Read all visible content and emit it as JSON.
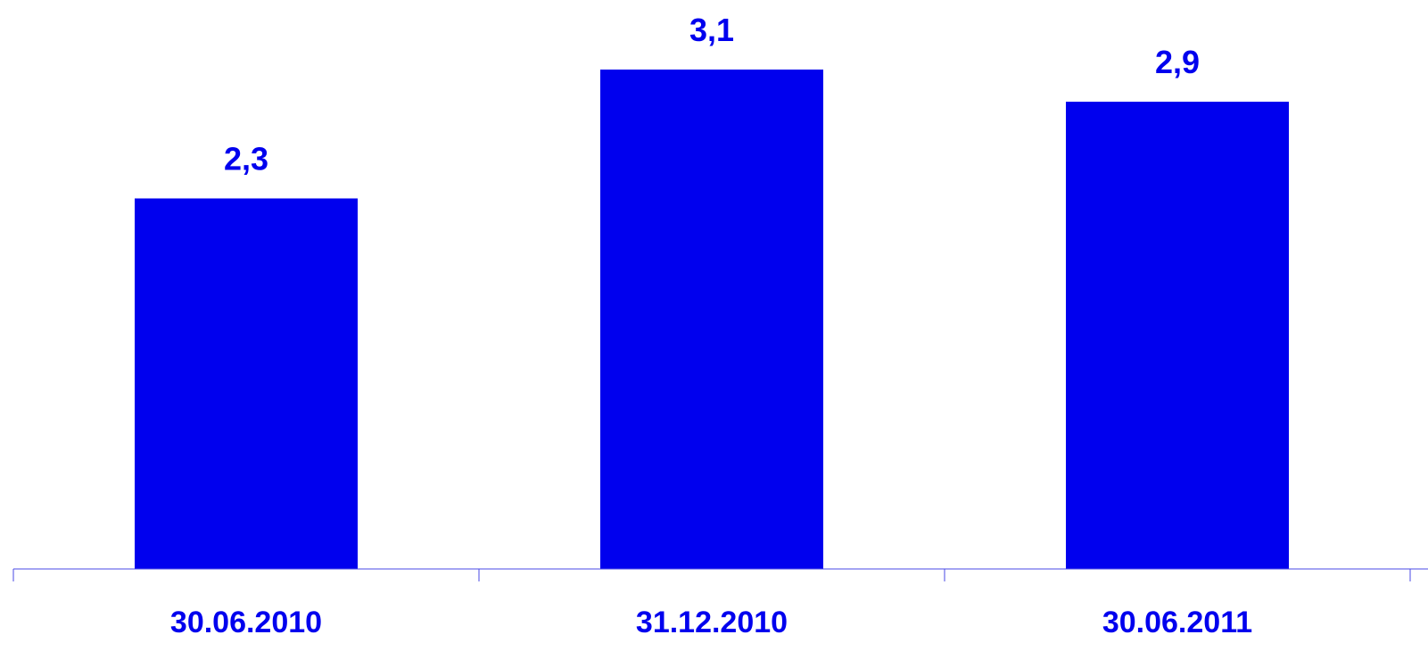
{
  "chart_data": {
    "type": "bar",
    "categories": [
      "30.06.2010",
      "31.12.2010",
      "30.06.2011"
    ],
    "values": [
      2.3,
      3.1,
      2.9
    ],
    "value_labels": [
      "2,3",
      "3,1",
      "2,9"
    ],
    "title": "",
    "xlabel": "",
    "ylabel": "",
    "ylim": [
      0,
      3.1
    ],
    "grid": false,
    "legend": "none",
    "bar_color": "#0000EE",
    "axis_color": "#4A4AE6",
    "label_color": "#0000EE"
  }
}
